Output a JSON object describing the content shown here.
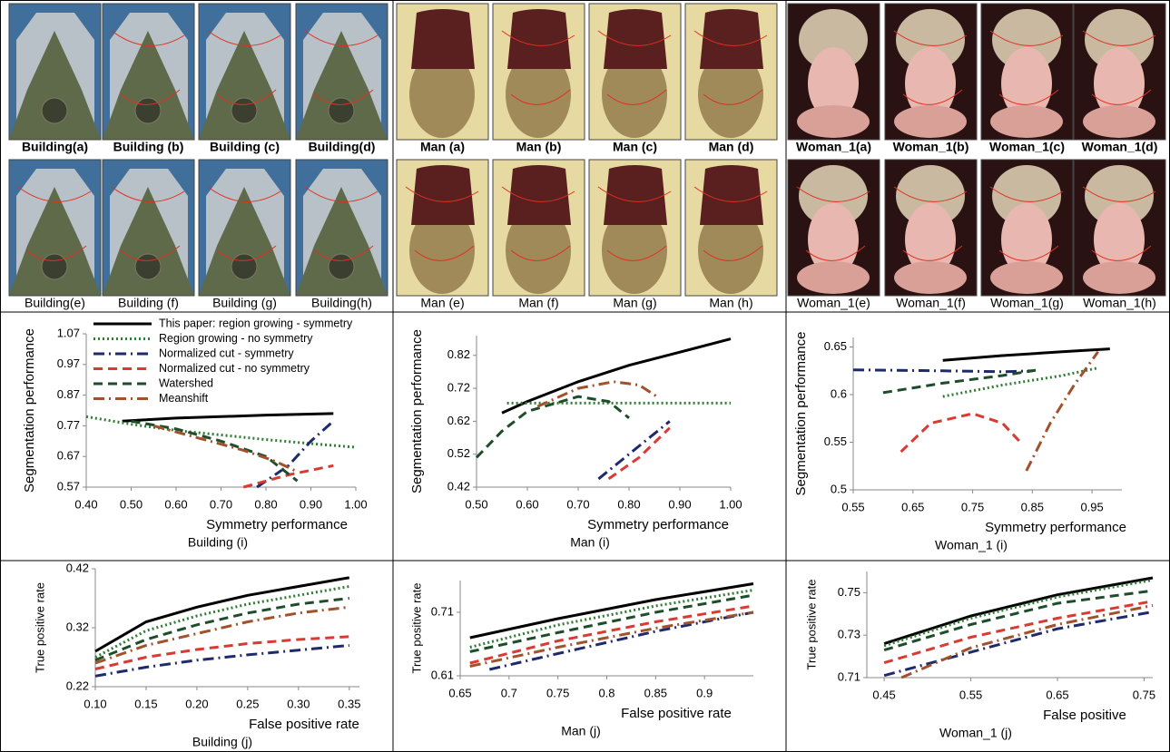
{
  "images": [
    {
      "labels": [
        "Building(a)",
        "Building (b)",
        "Building (c)",
        "Building(d)",
        "Man (a)",
        "Man (b)",
        "Man (c)",
        "Man (d)",
        "Woman_1(a)",
        "Woman_1(b)",
        "Woman_1(c)",
        "Woman_1(d)"
      ]
    },
    {
      "labels": [
        "Building(e)",
        "Building (f)",
        "Building (g)",
        "Building(h)",
        "Man (e)",
        "Man (f)",
        "Man (g)",
        "Man (h)",
        "Woman_1(e)",
        "Woman_1(f)",
        "Woman_1(g)",
        "Woman_1(h)"
      ]
    }
  ],
  "chart_data": [
    {
      "type": "line",
      "x_label": "Symmetry performance",
      "y_label": "Segmentation performance",
      "caption": "Building (i)",
      "xlim": [
        0.4,
        1.0
      ],
      "ylim": [
        0.57,
        1.07
      ],
      "xticks": [
        {
          "value": 0.4,
          "label": "0.40"
        },
        {
          "value": 0.5,
          "label": "0.50"
        },
        {
          "value": 0.6,
          "label": "0.60"
        },
        {
          "value": 0.7,
          "label": "0.70"
        },
        {
          "value": 0.8,
          "label": "0.80"
        },
        {
          "value": 0.9,
          "label": "0.90"
        },
        {
          "value": 1.0,
          "label": "1.00"
        }
      ],
      "yticks": [
        0.57,
        0.67,
        0.77,
        0.87,
        0.97,
        1.07
      ],
      "series": [
        {
          "name": "This paper: region growing - symmetry",
          "color": "#000000",
          "dash": "solid",
          "x": [
            0.48,
            0.6,
            0.7,
            0.8,
            0.95
          ],
          "values": [
            0.785,
            0.795,
            0.8,
            0.805,
            0.81
          ]
        },
        {
          "name": "Region growing - no symmetry",
          "color": "#2e7d32",
          "dash": "dotted",
          "x": [
            0.4,
            0.5,
            0.6,
            0.7,
            0.8,
            0.9,
            1.0
          ],
          "values": [
            0.8,
            0.775,
            0.755,
            0.74,
            0.725,
            0.712,
            0.7
          ]
        },
        {
          "name": "Normalized cut - symmetry",
          "color": "#1f2a6b",
          "dash": "dashdot",
          "x": [
            0.78,
            0.85,
            0.9,
            0.95
          ],
          "values": [
            0.57,
            0.64,
            0.72,
            0.785
          ]
        },
        {
          "name": "Normalized cut - no symmetry",
          "color": "#d83a34",
          "dash": "dashed",
          "x": [
            0.75,
            0.85,
            0.95
          ],
          "values": [
            0.57,
            0.61,
            0.64
          ]
        },
        {
          "name": "Watershed",
          "color": "#1e4d2b",
          "dash": "dashed",
          "x": [
            0.5,
            0.6,
            0.7,
            0.8,
            0.87
          ],
          "values": [
            0.785,
            0.76,
            0.72,
            0.67,
            0.59
          ]
        },
        {
          "name": "Meanshift",
          "color": "#a0522d",
          "dash": "dashdot",
          "x": [
            0.55,
            0.65,
            0.75,
            0.82,
            0.87
          ],
          "values": [
            0.77,
            0.73,
            0.69,
            0.655,
            0.62
          ]
        }
      ]
    },
    {
      "type": "line",
      "x_label": "Symmetry performance",
      "y_label": "Segmentation performance",
      "caption": "Man (i)",
      "xlim": [
        0.5,
        1.0
      ],
      "ylim": [
        0.42,
        0.88
      ],
      "xticks": [
        {
          "value": 0.5,
          "label": "0.50"
        },
        {
          "value": 0.6,
          "label": "0.60"
        },
        {
          "value": 0.7,
          "label": "0.70"
        },
        {
          "value": 0.8,
          "label": "0.80"
        },
        {
          "value": 0.9,
          "label": "0.90"
        },
        {
          "value": 1.0,
          "label": "1.00"
        }
      ],
      "yticks": [
        0.42,
        0.52,
        0.62,
        0.72,
        0.82
      ],
      "series": [
        {
          "color": "#000000",
          "dash": "solid",
          "x": [
            0.55,
            0.6,
            0.7,
            0.8,
            0.9,
            1.0
          ],
          "values": [
            0.645,
            0.68,
            0.74,
            0.79,
            0.83,
            0.87
          ]
        },
        {
          "color": "#2e7d32",
          "dash": "dotted",
          "x": [
            0.56,
            0.8,
            1.0
          ],
          "values": [
            0.675,
            0.675,
            0.675
          ]
        },
        {
          "color": "#1f2a6b",
          "dash": "dashdot",
          "x": [
            0.74,
            0.8,
            0.88
          ],
          "values": [
            0.445,
            0.52,
            0.62
          ]
        },
        {
          "color": "#d83a34",
          "dash": "dashed",
          "x": [
            0.76,
            0.82,
            0.88
          ],
          "values": [
            0.445,
            0.51,
            0.6
          ]
        },
        {
          "color": "#1e4d2b",
          "dash": "dashed",
          "x": [
            0.5,
            0.55,
            0.6,
            0.7,
            0.76,
            0.8
          ],
          "values": [
            0.51,
            0.59,
            0.65,
            0.695,
            0.68,
            0.63
          ]
        },
        {
          "color": "#a0522d",
          "dash": "dashdot",
          "x": [
            0.62,
            0.7,
            0.77,
            0.82,
            0.86
          ],
          "values": [
            0.665,
            0.72,
            0.74,
            0.73,
            0.69
          ]
        }
      ]
    },
    {
      "type": "line",
      "x_label": "Symmetry performance",
      "y_label": "Segmentation performance",
      "caption": "Woman_1 (i)",
      "xlim": [
        0.55,
        1.0
      ],
      "ylim": [
        0.5,
        0.66
      ],
      "xticks": [
        0.55,
        0.65,
        0.75,
        0.85,
        0.95
      ],
      "yticks": [
        0.5,
        0.55,
        0.6,
        0.65
      ],
      "series": [
        {
          "color": "#000000",
          "dash": "solid",
          "x": [
            0.7,
            0.8,
            0.9,
            0.98
          ],
          "values": [
            0.636,
            0.641,
            0.645,
            0.648
          ]
        },
        {
          "color": "#2e7d32",
          "dash": "dotted",
          "x": [
            0.7,
            0.8,
            0.9,
            0.96
          ],
          "values": [
            0.598,
            0.61,
            0.62,
            0.628
          ]
        },
        {
          "color": "#1f2a6b",
          "dash": "dashdot",
          "x": [
            0.55,
            0.7,
            0.8,
            0.85
          ],
          "values": [
            0.626,
            0.625,
            0.624,
            0.625
          ]
        },
        {
          "color": "#d83a34",
          "dash": "dashed",
          "x": [
            0.63,
            0.68,
            0.75,
            0.8,
            0.83
          ],
          "values": [
            0.54,
            0.57,
            0.58,
            0.57,
            0.55
          ]
        },
        {
          "color": "#1e4d2b",
          "dash": "dashed",
          "x": [
            0.6,
            0.7,
            0.8,
            0.86
          ],
          "values": [
            0.602,
            0.612,
            0.62,
            0.626
          ]
        },
        {
          "color": "#a0522d",
          "dash": "dashdot",
          "x": [
            0.84,
            0.88,
            0.92,
            0.96
          ],
          "values": [
            0.52,
            0.57,
            0.61,
            0.645
          ]
        }
      ]
    },
    {
      "type": "line",
      "x_label": "False positive rate",
      "y_label": "True positive rate",
      "caption": "Building (j)",
      "xlim": [
        0.1,
        0.36
      ],
      "ylim": [
        0.22,
        0.42
      ],
      "xticks": [
        {
          "value": 0.1,
          "label": "0.10"
        },
        {
          "value": 0.15,
          "label": "0.15"
        },
        {
          "value": 0.2,
          "label": "0.20"
        },
        {
          "value": 0.25,
          "label": "0.25"
        },
        {
          "value": 0.3,
          "label": "0.30"
        },
        {
          "value": 0.35,
          "label": "0.35"
        }
      ],
      "yticks": [
        0.22,
        0.32,
        0.42
      ],
      "series": [
        {
          "color": "#000000",
          "dash": "solid",
          "x": [
            0.1,
            0.15,
            0.2,
            0.25,
            0.3,
            0.35
          ],
          "values": [
            0.28,
            0.33,
            0.355,
            0.375,
            0.39,
            0.405
          ]
        },
        {
          "color": "#2e7d32",
          "dash": "dotted",
          "x": [
            0.1,
            0.15,
            0.2,
            0.25,
            0.3,
            0.35
          ],
          "values": [
            0.27,
            0.315,
            0.34,
            0.36,
            0.375,
            0.39
          ]
        },
        {
          "color": "#1f2a6b",
          "dash": "dashdot",
          "x": [
            0.1,
            0.15,
            0.2,
            0.25,
            0.3,
            0.35
          ],
          "values": [
            0.238,
            0.253,
            0.265,
            0.274,
            0.282,
            0.29
          ]
        },
        {
          "color": "#d83a34",
          "dash": "dashed",
          "x": [
            0.1,
            0.15,
            0.2,
            0.25,
            0.3,
            0.35
          ],
          "values": [
            0.25,
            0.27,
            0.283,
            0.293,
            0.3,
            0.305
          ]
        },
        {
          "color": "#1e4d2b",
          "dash": "dashed",
          "x": [
            0.1,
            0.15,
            0.2,
            0.25,
            0.3,
            0.35
          ],
          "values": [
            0.265,
            0.3,
            0.325,
            0.345,
            0.36,
            0.37
          ]
        },
        {
          "color": "#a0522d",
          "dash": "dashdot",
          "x": [
            0.1,
            0.15,
            0.2,
            0.25,
            0.3,
            0.35
          ],
          "values": [
            0.26,
            0.29,
            0.31,
            0.33,
            0.345,
            0.355
          ]
        }
      ]
    },
    {
      "type": "line",
      "x_label": "False positive rate",
      "y_label": "True positive rate",
      "caption": "Man (j)",
      "xlim": [
        0.65,
        0.95
      ],
      "ylim": [
        0.61,
        0.76
      ],
      "xticks": [
        0.65,
        0.7,
        0.75,
        0.8,
        0.85,
        0.9
      ],
      "yticks": [
        0.61,
        0.71
      ],
      "series": [
        {
          "color": "#000000",
          "dash": "solid",
          "x": [
            0.66,
            0.75,
            0.85,
            0.95
          ],
          "values": [
            0.67,
            0.7,
            0.73,
            0.755
          ]
        },
        {
          "color": "#2e7d32",
          "dash": "dotted",
          "x": [
            0.66,
            0.75,
            0.85,
            0.95
          ],
          "values": [
            0.655,
            0.69,
            0.72,
            0.745
          ]
        },
        {
          "color": "#1f2a6b",
          "dash": "dashdot",
          "x": [
            0.68,
            0.75,
            0.85,
            0.95
          ],
          "values": [
            0.62,
            0.645,
            0.68,
            0.71
          ]
        },
        {
          "color": "#d83a34",
          "dash": "dashed",
          "x": [
            0.66,
            0.75,
            0.85,
            0.95
          ],
          "values": [
            0.63,
            0.665,
            0.695,
            0.72
          ]
        },
        {
          "color": "#1e4d2b",
          "dash": "dashed",
          "x": [
            0.66,
            0.75,
            0.85,
            0.95
          ],
          "values": [
            0.648,
            0.678,
            0.71,
            0.737
          ]
        },
        {
          "color": "#a0522d",
          "dash": "dashdot",
          "x": [
            0.66,
            0.75,
            0.85,
            0.95
          ],
          "values": [
            0.625,
            0.655,
            0.685,
            0.71
          ]
        }
      ]
    },
    {
      "type": "line",
      "x_label": "False positive",
      "y_label": "True positive rate",
      "caption": "Woman_1 (j)",
      "xlim": [
        0.43,
        0.76
      ],
      "ylim": [
        0.71,
        0.76
      ],
      "xticks": [
        0.45,
        0.55,
        0.65,
        0.75
      ],
      "yticks": [
        0.71,
        0.73,
        0.75
      ],
      "series": [
        {
          "color": "#000000",
          "dash": "solid",
          "x": [
            0.45,
            0.55,
            0.65,
            0.76
          ],
          "values": [
            0.726,
            0.739,
            0.749,
            0.757
          ]
        },
        {
          "color": "#2e7d32",
          "dash": "dotted",
          "x": [
            0.45,
            0.55,
            0.65,
            0.76
          ],
          "values": [
            0.725,
            0.738,
            0.748,
            0.756
          ]
        },
        {
          "color": "#1f2a6b",
          "dash": "dashdot",
          "x": [
            0.45,
            0.55,
            0.65,
            0.76
          ],
          "values": [
            0.711,
            0.722,
            0.733,
            0.741
          ]
        },
        {
          "color": "#d83a34",
          "dash": "dashed",
          "x": [
            0.45,
            0.55,
            0.65,
            0.76
          ],
          "values": [
            0.717,
            0.729,
            0.738,
            0.746
          ]
        },
        {
          "color": "#1e4d2b",
          "dash": "dashed",
          "x": [
            0.45,
            0.55,
            0.65,
            0.76
          ],
          "values": [
            0.723,
            0.735,
            0.745,
            0.751
          ]
        },
        {
          "color": "#a0522d",
          "dash": "dashdot",
          "x": [
            0.47,
            0.55,
            0.65,
            0.76
          ],
          "values": [
            0.71,
            0.724,
            0.735,
            0.744
          ]
        }
      ]
    }
  ]
}
